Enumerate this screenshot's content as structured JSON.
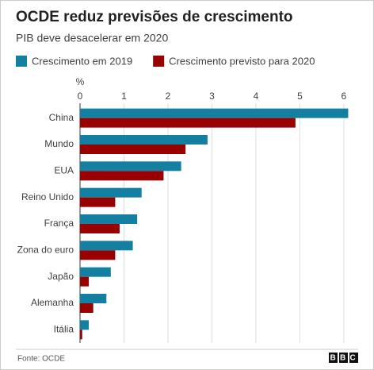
{
  "chart_data": {
    "type": "bar",
    "orientation": "horizontal",
    "title": "OCDE reduz previsões de crescimento",
    "subtitle": "PIB deve desacelerar em 2020",
    "x_label": "%",
    "categories": [
      "China",
      "Mundo",
      "EUA",
      "Reino Unido",
      "França",
      "Zona do euro",
      "Japão",
      "Alemanha",
      "Itália"
    ],
    "series": [
      {
        "name": "Crescimento em 2019",
        "color": "#1380a1",
        "values": [
          6.1,
          2.9,
          2.3,
          1.4,
          1.3,
          1.2,
          0.7,
          0.6,
          0.2
        ]
      },
      {
        "name": "Crescimento previsto para 2020",
        "color": "#990000",
        "values": [
          4.9,
          2.4,
          1.9,
          0.8,
          0.9,
          0.8,
          0.2,
          0.3,
          0.05
        ]
      }
    ],
    "xlim": [
      0,
      6.2
    ],
    "xticks": [
      0,
      1,
      2,
      3,
      4,
      5,
      6
    ],
    "grid": true,
    "source": "Fonte: OCDE",
    "logo": "BBC"
  }
}
